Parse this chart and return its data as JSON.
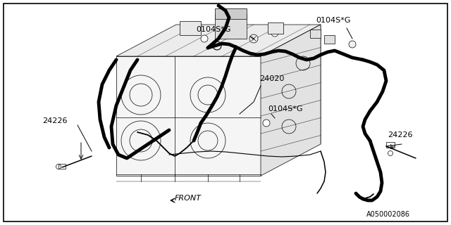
{
  "bg_color": "#ffffff",
  "border_color": "#000000",
  "line_color": "#000000",
  "part_number_bottom": "A050002086",
  "labels": {
    "24226_left": "24226",
    "24226_right": "24226",
    "24020": "24020",
    "0104SG_left": "0104S*G",
    "0104SG_right": "0104S*G",
    "0104SG_mid": "0104S*G",
    "FRONT": "FRONT"
  },
  "font_size_label": 8.0,
  "font_size_partnum": 7.0,
  "figsize": [
    6.4,
    3.2
  ],
  "dpi": 100
}
